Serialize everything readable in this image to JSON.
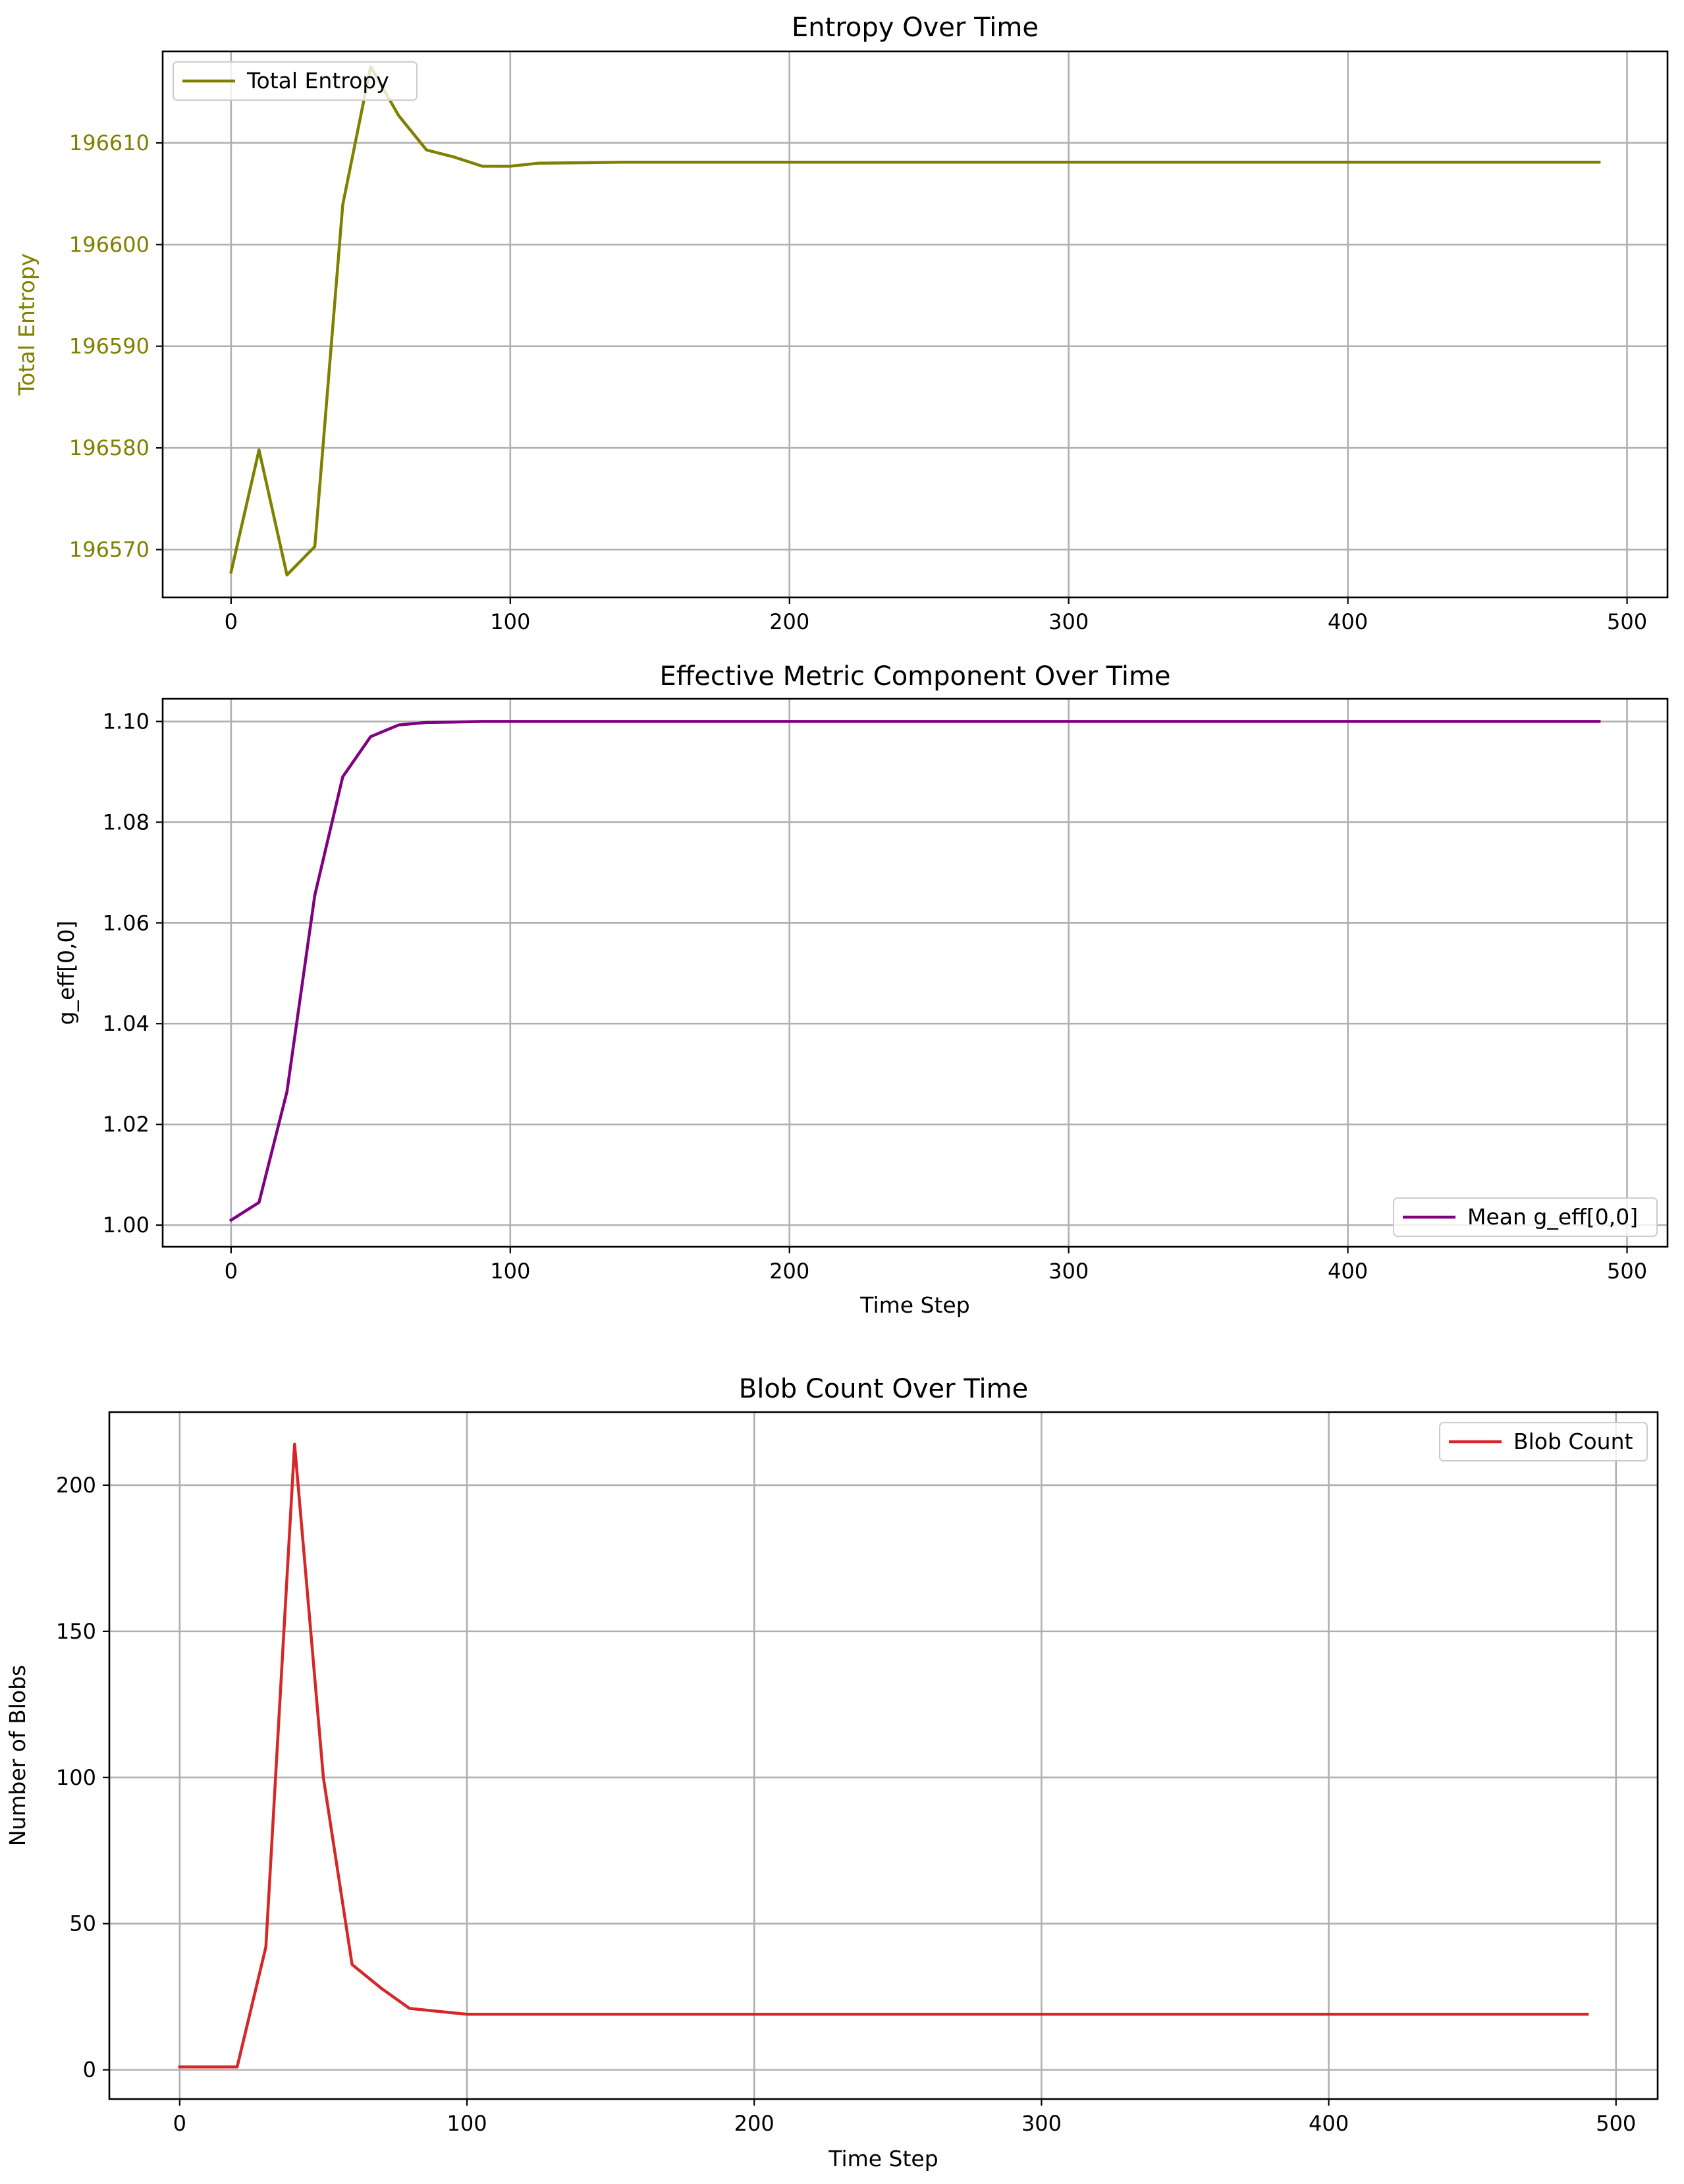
{
  "chart_data": [
    {
      "type": "line",
      "title": "Entropy Over Time",
      "xlabel": "",
      "ylabel": "Total Entropy",
      "xlim": [
        -24.5,
        514.5
      ],
      "ylim": [
        196565.3,
        196619.0
      ],
      "xticks": [
        0,
        100,
        200,
        300,
        400,
        500
      ],
      "xtick_labels": [
        "0",
        "100",
        "200",
        "300",
        "400",
        "500"
      ],
      "yticks": [
        196570,
        196580,
        196590,
        196600,
        196610
      ],
      "ytick_labels": [
        "196570",
        "196580",
        "196590",
        "196600",
        "196610"
      ],
      "label_color": "#808000",
      "grid": true,
      "legend_position": "top-left",
      "series": [
        {
          "name": "Total Entropy",
          "color": "#808000",
          "x": [
            0,
            10,
            20,
            30,
            40,
            50,
            60,
            70,
            80,
            90,
            100,
            110,
            140,
            200,
            300,
            400,
            490
          ],
          "y": [
            196567.8,
            196579.8,
            196567.5,
            196570.3,
            196603.9,
            196617.5,
            196612.7,
            196609.3,
            196608.6,
            196607.7,
            196607.7,
            196608.0,
            196608.1,
            196608.1,
            196608.1,
            196608.1,
            196608.1
          ]
        }
      ]
    },
    {
      "type": "line",
      "title": "Effective Metric Component Over Time",
      "xlabel": "Time Step",
      "ylabel": "g_eff[0,0]",
      "xlim": [
        -24.5,
        514.5
      ],
      "ylim": [
        0.9957,
        1.1045
      ],
      "xticks": [
        0,
        100,
        200,
        300,
        400,
        500
      ],
      "xtick_labels": [
        "0",
        "100",
        "200",
        "300",
        "400",
        "500"
      ],
      "yticks": [
        1.0,
        1.02,
        1.04,
        1.06,
        1.08,
        1.1
      ],
      "ytick_labels": [
        "1.00",
        "1.02",
        "1.04",
        "1.06",
        "1.08",
        "1.10"
      ],
      "label_color": "#000000",
      "grid": true,
      "legend_position": "bottom-right",
      "series": [
        {
          "name": "Mean g_eff[0,0]",
          "color": "#800080",
          "x": [
            0,
            10,
            20,
            30,
            40,
            50,
            60,
            70,
            80,
            90,
            100,
            200,
            300,
            400,
            490
          ],
          "y": [
            1.001,
            1.0045,
            1.0265,
            1.0655,
            1.089,
            1.097,
            1.0993,
            1.0998,
            1.0999,
            1.1,
            1.1,
            1.1,
            1.1,
            1.1,
            1.1
          ]
        }
      ]
    },
    {
      "type": "line",
      "title": "Blob Count Over Time",
      "xlabel": "Time Step",
      "ylabel": "Number of Blobs",
      "xlim": [
        -24.5,
        514.5
      ],
      "ylim": [
        -10,
        225
      ],
      "xticks": [
        0,
        100,
        200,
        300,
        400,
        500
      ],
      "xtick_labels": [
        "0",
        "100",
        "200",
        "300",
        "400",
        "500"
      ],
      "yticks": [
        0,
        50,
        100,
        150,
        200
      ],
      "ytick_labels": [
        "0",
        "50",
        "100",
        "150",
        "200"
      ],
      "label_color": "#000000",
      "grid": true,
      "legend_position": "top-right",
      "series": [
        {
          "name": "Blob Count",
          "color": "#d62728",
          "x": [
            0,
            10,
            20,
            30,
            40,
            50,
            60,
            70,
            80,
            90,
            100,
            200,
            300,
            400,
            490
          ],
          "y": [
            1,
            1,
            1,
            42,
            214,
            100,
            36,
            28,
            21,
            20,
            19,
            19,
            19,
            19,
            19
          ]
        }
      ]
    }
  ]
}
